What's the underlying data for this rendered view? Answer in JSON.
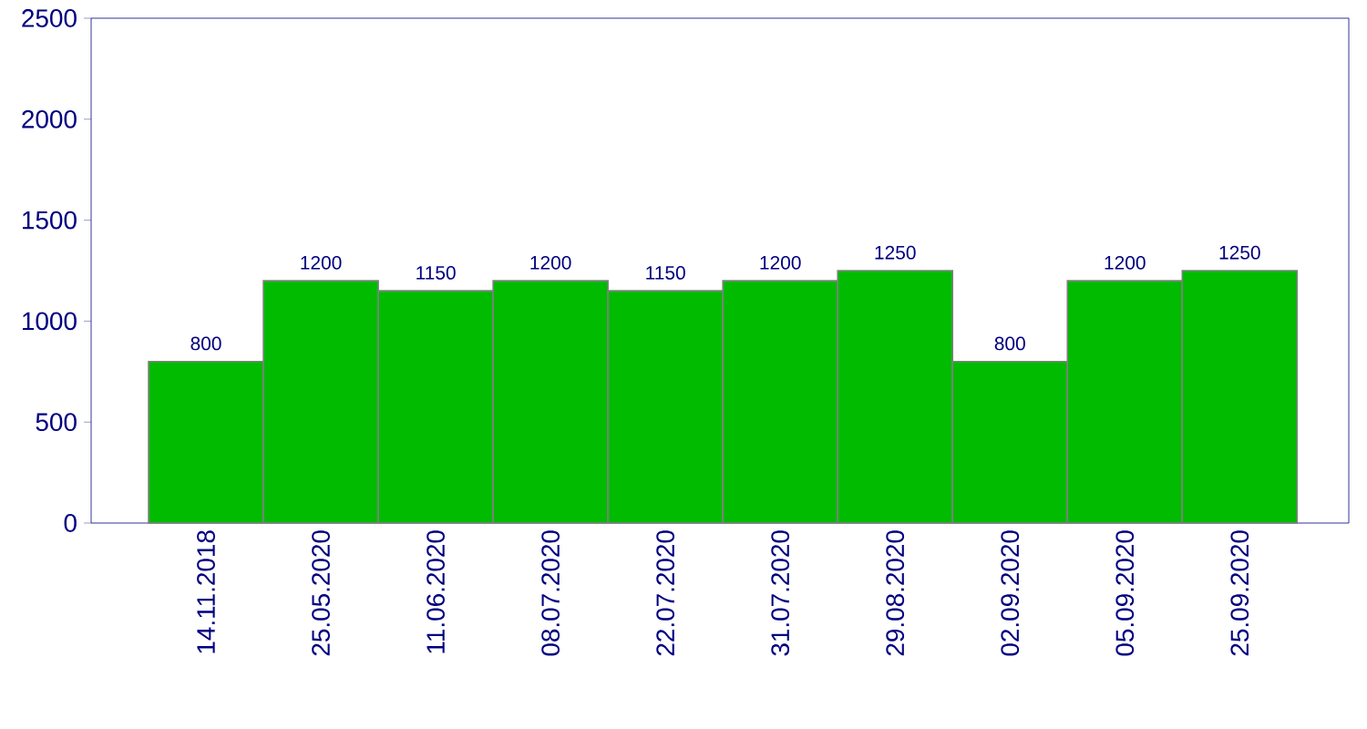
{
  "chart_data": {
    "type": "bar",
    "categories": [
      "14.11.2018",
      "25.05.2020",
      "11.06.2020",
      "08.07.2020",
      "22.07.2020",
      "31.07.2020",
      "29.08.2020",
      "02.09.2020",
      "05.09.2020",
      "25.09.2020"
    ],
    "values": [
      800,
      1200,
      1150,
      1200,
      1150,
      1200,
      1250,
      800,
      1200,
      1250
    ],
    "color": "#00bb00",
    "ylim": [
      0,
      2500
    ],
    "yticks": [
      0,
      500,
      1000,
      1500,
      2000,
      2500
    ],
    "data_labels": true
  }
}
